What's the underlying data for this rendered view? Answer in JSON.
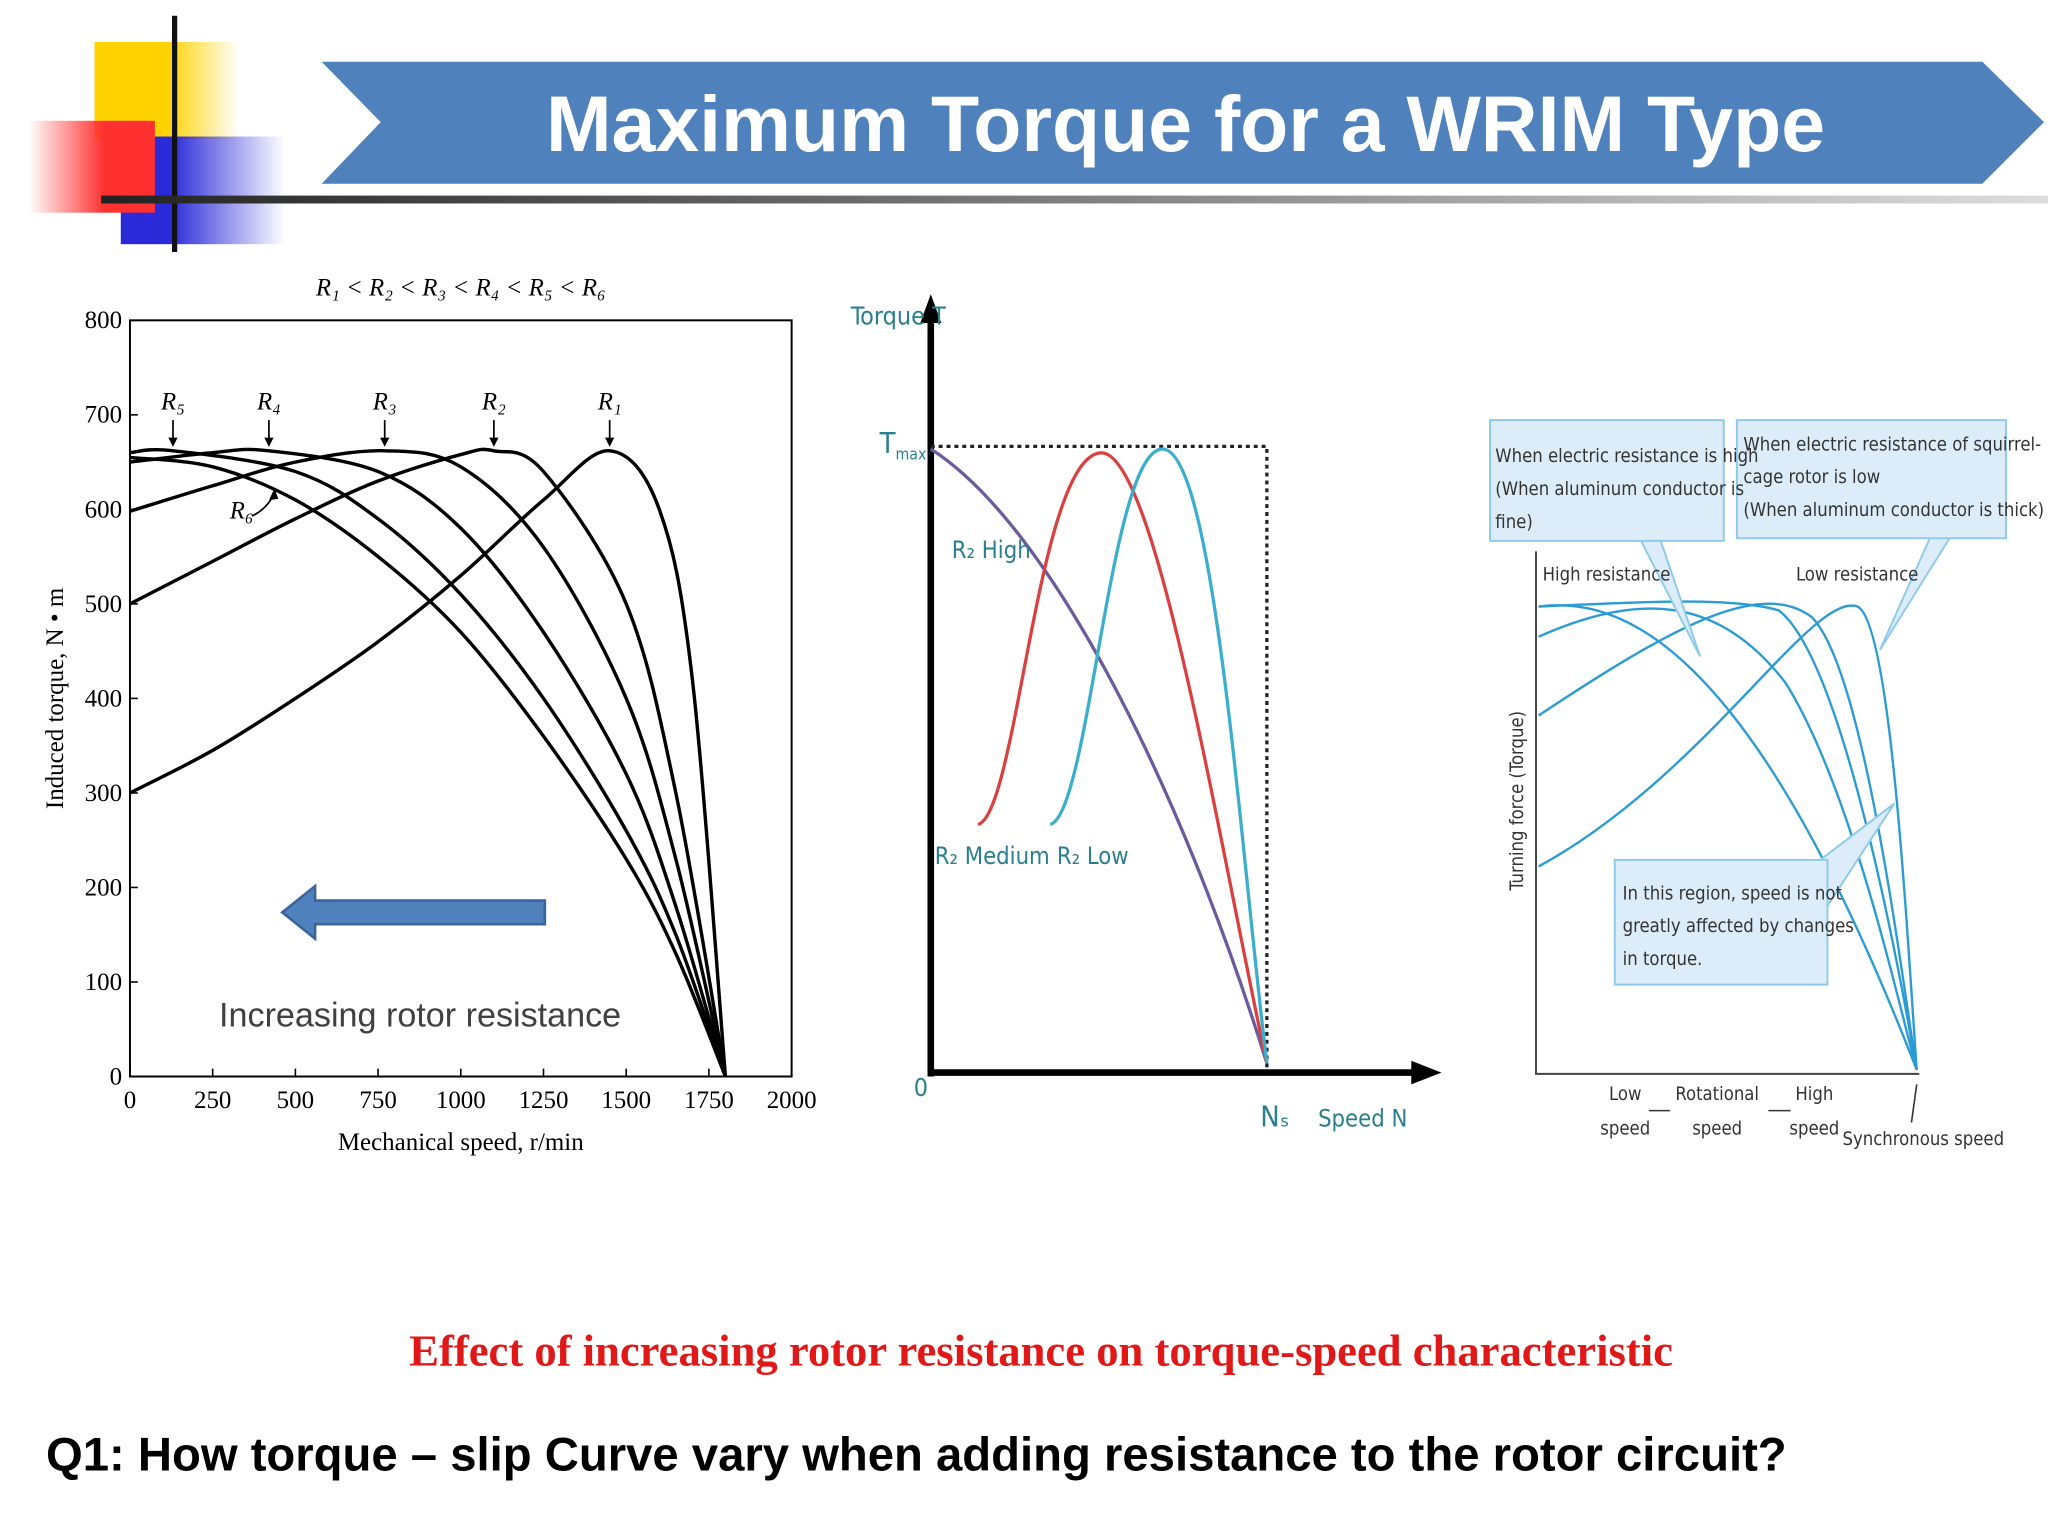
{
  "title": "Maximum Torque for a WRIM Type",
  "chart_data": {
    "type": "line",
    "title": "R₁ < R₂ < R₃ < R₄ < R₅ < R₆",
    "x_label": "Mechanical speed, r/min",
    "y_label": "Induced torque, N • m",
    "xlim": [
      0,
      2000
    ],
    "xticks": [
      0,
      250,
      500,
      750,
      1000,
      1250,
      1500,
      1750,
      2000
    ],
    "ylim": [
      0,
      800
    ],
    "yticks": [
      0,
      100,
      200,
      300,
      400,
      500,
      600,
      700,
      800
    ],
    "series": [
      {
        "name": "R₁",
        "color": "#000000",
        "x": [
          0,
          250,
          500,
          750,
          1000,
          1250,
          1450,
          1600,
          1700,
          1800
        ],
        "values": [
          300,
          345,
          400,
          460,
          530,
          610,
          662,
          600,
          420,
          0
        ]
      },
      {
        "name": "R₂",
        "color": "#000000",
        "x": [
          0,
          250,
          500,
          750,
          1000,
          1100,
          1250,
          1500,
          1650,
          1800
        ],
        "values": [
          500,
          545,
          590,
          630,
          658,
          662,
          640,
          500,
          300,
          0
        ]
      },
      {
        "name": "R₃",
        "color": "#000000",
        "x": [
          0,
          250,
          500,
          770,
          1000,
          1250,
          1500,
          1650,
          1800
        ],
        "values": [
          598,
          625,
          650,
          662,
          645,
          560,
          400,
          230,
          0
        ]
      },
      {
        "name": "R₄",
        "color": "#000000",
        "x": [
          0,
          250,
          420,
          750,
          1000,
          1250,
          1500,
          1650,
          1800
        ],
        "values": [
          650,
          660,
          662,
          640,
          580,
          470,
          320,
          180,
          0
        ]
      },
      {
        "name": "R₅",
        "color": "#000000",
        "x": [
          0,
          130,
          500,
          750,
          1000,
          1250,
          1500,
          1650,
          1800
        ],
        "values": [
          660,
          662,
          640,
          590,
          510,
          400,
          260,
          150,
          0
        ]
      },
      {
        "name": "R₆",
        "color": "#000000",
        "x": [
          0,
          250,
          500,
          750,
          1000,
          1250,
          1500,
          1650,
          1800
        ],
        "values": [
          655,
          645,
          610,
          550,
          470,
          360,
          230,
          130,
          0
        ]
      }
    ],
    "annotation": "Increasing rotor resistance"
  },
  "diagram_middle": {
    "y_axis_label": "Torque T",
    "tmax": {
      "symbol": "T",
      "subscript": "max"
    },
    "high": "R₂ High",
    "medium": "R₂ Medium",
    "low": "R₂ Low",
    "origin": "0",
    "ns": "Nₛ",
    "x_axis_label": "Speed N"
  },
  "diagram_right": {
    "box_high": [
      "When electric resistance is high",
      "(When aluminum conductor is",
      "fine)"
    ],
    "box_low": [
      "When electric resistance of squirrel-",
      "cage rotor is low",
      "(When aluminum conductor is thick)"
    ],
    "high_resistance": "High resistance",
    "low_resistance": "Low resistance",
    "y_axis_label": "Turning force (Torque)",
    "region": [
      "In this region, speed is not",
      "greatly affected by changes",
      "in torque."
    ],
    "low_speed": [
      "Low",
      "speed"
    ],
    "rotational_speed": [
      "Rotational",
      "speed"
    ],
    "high_speed": [
      "High",
      "speed"
    ],
    "synchronous_speed": "Synchronous speed"
  },
  "caption": "Effect of  increasing rotor resistance on torque-speed characteristic",
  "question": "Q1: How torque – slip Curve vary when adding resistance to the rotor circuit?"
}
